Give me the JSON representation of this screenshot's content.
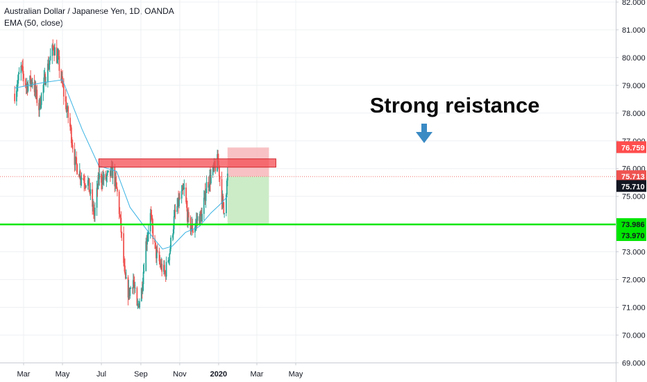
{
  "header": {
    "title": "Australian Dollar / Japanese Yen, 1D, OANDA",
    "indicator": "EMA (50, close)"
  },
  "colors": {
    "up": "#26a69a",
    "down": "#ef5350",
    "ema": "#3bb3e4",
    "resistance_fill": "#f44c53",
    "support_line": "#00e600",
    "current_price_badge": "#ef5350",
    "stop_loss_badge": "#ff4d4d",
    "support_badge": "#00e600",
    "close_badge": "#131722",
    "arrow": "#3a8ac4"
  },
  "annotation": {
    "text": "Strong reistance",
    "arrow_icon": "down-arrow-icon"
  },
  "chart_data": {
    "type": "candlestick",
    "title": "Australian Dollar / Japanese Yen, 1D, OANDA",
    "xlabel": "",
    "ylabel": "",
    "x_tick_labels": [
      "Mar",
      "May",
      "Jul",
      "Sep",
      "Nov",
      "2020",
      "Mar",
      "May"
    ],
    "y_tick_labels": [
      "82.000",
      "81.000",
      "80.000",
      "79.000",
      "78.000",
      "77.000",
      "76.000",
      "75.000",
      "73.000",
      "72.000",
      "71.000",
      "70.000",
      "69.000"
    ],
    "y_range": [
      69.0,
      82.0
    ],
    "grid": true,
    "price_path_start": "2019-02-15",
    "price_path": [
      [
        "2019-02-15",
        78.7
      ],
      [
        "2019-02-25",
        79.6
      ],
      [
        "2019-03-05",
        79.0
      ],
      [
        "2019-03-15",
        79.2
      ],
      [
        "2019-03-25",
        78.2
      ],
      [
        "2019-04-05",
        79.4
      ],
      [
        "2019-04-17",
        80.4
      ],
      [
        "2019-04-25",
        79.8
      ],
      [
        "2019-05-03",
        78.7
      ],
      [
        "2019-05-13",
        77.5
      ],
      [
        "2019-05-21",
        76.2
      ],
      [
        "2019-05-31",
        75.7
      ],
      [
        "2019-06-10",
        75.5
      ],
      [
        "2019-06-20",
        74.3
      ],
      [
        "2019-06-27",
        75.7
      ],
      [
        "2019-07-05",
        75.6
      ],
      [
        "2019-07-12",
        75.7
      ],
      [
        "2019-07-19",
        75.9
      ],
      [
        "2019-07-27",
        75.0
      ],
      [
        "2019-08-02",
        73.5
      ],
      [
        "2019-08-07",
        72.0
      ],
      [
        "2019-08-13",
        71.5
      ],
      [
        "2019-08-20",
        72.0
      ],
      [
        "2019-08-26",
        70.9
      ],
      [
        "2019-09-02",
        71.6
      ],
      [
        "2019-09-09",
        73.3
      ],
      [
        "2019-09-16",
        74.3
      ],
      [
        "2019-09-24",
        73.0
      ],
      [
        "2019-10-02",
        72.5
      ],
      [
        "2019-10-09",
        72.2
      ],
      [
        "2019-10-16",
        73.0
      ],
      [
        "2019-10-24",
        74.3
      ],
      [
        "2019-11-01",
        74.9
      ],
      [
        "2019-11-08",
        75.2
      ],
      [
        "2019-11-15",
        74.0
      ],
      [
        "2019-11-22",
        73.8
      ],
      [
        "2019-11-29",
        74.2
      ],
      [
        "2019-12-06",
        74.3
      ],
      [
        "2019-12-13",
        75.4
      ],
      [
        "2019-12-20",
        75.7
      ],
      [
        "2019-12-31",
        76.3
      ],
      [
        "2020-01-06",
        75.0
      ],
      [
        "2020-01-09",
        74.4
      ],
      [
        "2020-01-15",
        75.7
      ]
    ],
    "ema_50": [
      [
        "2019-02-15",
        78.9
      ],
      [
        "2019-04-01",
        79.1
      ],
      [
        "2019-05-01",
        79.2
      ],
      [
        "2019-06-01",
        77.4
      ],
      [
        "2019-06-27",
        76.1
      ],
      [
        "2019-07-25",
        75.9
      ],
      [
        "2019-08-15",
        74.6
      ],
      [
        "2019-09-10",
        73.8
      ],
      [
        "2019-10-05",
        73.1
      ],
      [
        "2019-10-20",
        73.2
      ],
      [
        "2019-11-10",
        73.7
      ],
      [
        "2019-12-01",
        73.9
      ],
      [
        "2019-12-20",
        74.4
      ],
      [
        "2020-01-03",
        74.7
      ],
      [
        "2020-01-15",
        75.0
      ]
    ],
    "resistance_zone": {
      "from": "2019-06-27",
      "to": "2020-03-20",
      "top": 76.35,
      "bottom": 76.05
    },
    "support_level": 73.986,
    "position": {
      "from": "2020-01-15",
      "to": "2020-03-20",
      "entry": 75.713,
      "stop": 76.759,
      "target": 73.986
    },
    "price_labels": {
      "stop_loss": "76.759",
      "current": "75.713",
      "close": "75.710",
      "support": "73.986",
      "support_low": "73.970"
    }
  }
}
